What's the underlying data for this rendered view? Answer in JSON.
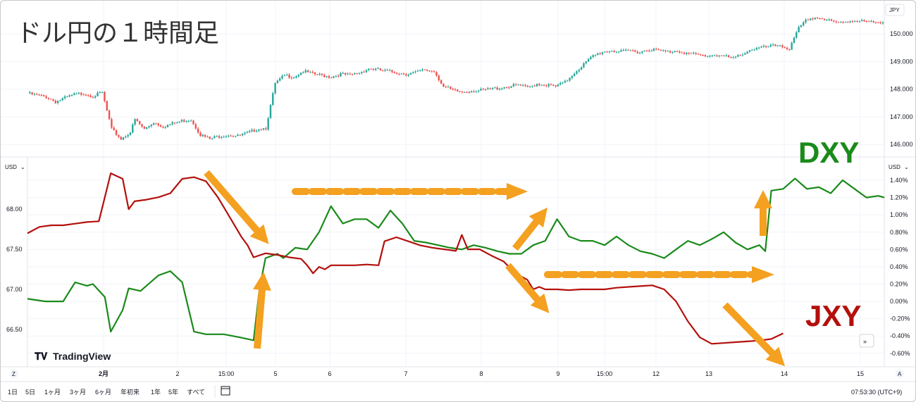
{
  "title": "ドル円の１時間足",
  "colors": {
    "up": "#26a69a",
    "down": "#ef5350",
    "dxy": "#1a8a1a",
    "jxy": "#b3100c",
    "arrow": "#f4a020",
    "grid": "#f0f3fa",
    "dxy_label": "#1a8a1a",
    "jxy_label": "#b3100c"
  },
  "top_panel": {
    "currency_button": "JPY",
    "y_labels": [
      "150.000",
      "149.000",
      "148.000",
      "147.000",
      "146.000"
    ],
    "y_values": [
      150,
      149,
      148,
      147,
      146
    ],
    "y_range": [
      145.75,
      151.0
    ]
  },
  "bottom_panel": {
    "left_currency": "USD",
    "right_currency": "USD",
    "left_labels": [
      "68.00",
      "67.50",
      "67.00",
      "66.50"
    ],
    "left_values": [
      68.0,
      67.5,
      67.0,
      66.5
    ],
    "left_range": [
      66.05,
      68.6
    ],
    "right_labels": [
      "1.40%",
      "1.20%",
      "1.00%",
      "0.80%",
      "0.60%",
      "0.40%",
      "0.20%",
      "0.00%",
      "-0.20%",
      "-0.40%",
      "-0.60%"
    ],
    "right_values": [
      1.4,
      1.2,
      1.0,
      0.8,
      0.6,
      0.4,
      0.2,
      0.0,
      -0.2,
      -0.4,
      -0.6
    ],
    "right_range": [
      -0.74,
      1.62
    ],
    "labels": {
      "dxy": "DXY",
      "jxy": "JXY"
    },
    "watermark": "TradingView",
    "scroll_button": "»"
  },
  "time_axis": {
    "left_button": "Z",
    "right_button": "A",
    "labels": [
      "2月",
      "2",
      "15:00",
      "5",
      "6",
      "7",
      "8",
      "9",
      "15:00",
      "12",
      "13",
      "14",
      "15"
    ]
  },
  "toolbar": {
    "ranges": [
      "1日",
      "5日",
      "1ヶ月",
      "3ヶ月",
      "6ヶ月",
      "年初来",
      "1年",
      "5年",
      "すべて"
    ],
    "clock": "07:53:30 (UTC+9)"
  },
  "chart_data": [
    {
      "type": "candlestick",
      "title": "ドル円の１時間足",
      "ylabel": "JPY",
      "ylim": [
        145.75,
        151.0
      ],
      "x_ticks": [
        "2月",
        "2",
        "15:00",
        "5",
        "6",
        "7",
        "8",
        "9",
        "15:00",
        "12",
        "13",
        "14",
        "15"
      ],
      "close_path": [
        [
          0,
          147.85
        ],
        [
          4,
          147.78
        ],
        [
          8,
          147.72
        ],
        [
          12,
          147.55
        ],
        [
          16,
          147.68
        ],
        [
          20,
          147.8
        ],
        [
          24,
          147.85
        ],
        [
          28,
          147.75
        ],
        [
          32,
          147.88
        ],
        [
          36,
          146.55
        ],
        [
          40,
          146.2
        ],
        [
          44,
          146.45
        ],
        [
          46,
          146.9
        ],
        [
          50,
          146.55
        ],
        [
          54,
          146.8
        ],
        [
          58,
          146.65
        ],
        [
          62,
          146.75
        ],
        [
          66,
          146.85
        ],
        [
          70,
          146.9
        ],
        [
          74,
          146.35
        ],
        [
          78,
          146.2
        ],
        [
          82,
          146.3
        ],
        [
          86,
          146.35
        ],
        [
          90,
          146.3
        ],
        [
          94,
          146.4
        ],
        [
          98,
          146.55
        ],
        [
          102,
          146.6
        ],
        [
          106,
          148.2
        ],
        [
          110,
          148.5
        ],
        [
          114,
          148.45
        ],
        [
          118,
          148.65
        ],
        [
          122,
          148.55
        ],
        [
          126,
          148.5
        ],
        [
          130,
          148.45
        ],
        [
          134,
          148.55
        ],
        [
          138,
          148.5
        ],
        [
          142,
          148.6
        ],
        [
          146,
          148.75
        ],
        [
          150,
          148.7
        ],
        [
          154,
          148.65
        ],
        [
          158,
          148.6
        ],
        [
          162,
          148.55
        ],
        [
          166,
          148.6
        ],
        [
          170,
          148.7
        ],
        [
          174,
          148.65
        ],
        [
          178,
          148.1
        ],
        [
          182,
          147.95
        ],
        [
          186,
          147.9
        ],
        [
          190,
          147.95
        ],
        [
          194,
          147.95
        ],
        [
          198,
          148.0
        ],
        [
          202,
          148.05
        ],
        [
          206,
          148.1
        ],
        [
          210,
          148.15
        ],
        [
          214,
          148.05
        ],
        [
          218,
          148.2
        ],
        [
          222,
          148.15
        ],
        [
          226,
          148.1
        ],
        [
          230,
          148.25
        ],
        [
          234,
          148.6
        ],
        [
          238,
          148.9
        ],
        [
          242,
          149.2
        ],
        [
          246,
          149.35
        ],
        [
          250,
          149.4
        ],
        [
          254,
          149.35
        ],
        [
          258,
          149.4
        ],
        [
          262,
          149.35
        ],
        [
          266,
          149.45
        ],
        [
          270,
          149.4
        ],
        [
          274,
          149.35
        ],
        [
          278,
          149.4
        ],
        [
          282,
          149.3
        ],
        [
          286,
          149.25
        ],
        [
          290,
          149.2
        ],
        [
          294,
          149.25
        ],
        [
          298,
          149.2
        ],
        [
          302,
          149.1
        ],
        [
          306,
          149.3
        ],
        [
          310,
          149.45
        ],
        [
          314,
          149.5
        ],
        [
          318,
          149.55
        ],
        [
          322,
          149.6
        ],
        [
          326,
          149.45
        ],
        [
          330,
          150.2
        ],
        [
          334,
          150.55
        ],
        [
          338,
          150.6
        ],
        [
          342,
          150.5
        ],
        [
          346,
          150.4
        ],
        [
          350,
          150.45
        ],
        [
          354,
          150.5
        ],
        [
          358,
          150.45
        ],
        [
          362,
          150.4
        ],
        [
          366,
          150.45
        ]
      ]
    },
    {
      "type": "line",
      "series": [
        {
          "name": "DXY",
          "axis": "right_percent",
          "values": [
            [
              0,
              0.03
            ],
            [
              3,
              0.0
            ],
            [
              6,
              0.0
            ],
            [
              8,
              0.22
            ],
            [
              10,
              0.18
            ],
            [
              11,
              0.2
            ],
            [
              13,
              0.05
            ],
            [
              14,
              -0.35
            ],
            [
              16,
              -0.1
            ],
            [
              17,
              0.15
            ],
            [
              19,
              0.12
            ],
            [
              22,
              0.3
            ],
            [
              24,
              0.35
            ],
            [
              26,
              0.22
            ],
            [
              28,
              -0.35
            ],
            [
              30,
              -0.38
            ],
            [
              33,
              -0.38
            ],
            [
              36,
              -0.42
            ],
            [
              38,
              -0.45
            ],
            [
              39,
              0.15
            ],
            [
              40,
              0.5
            ],
            [
              42,
              0.55
            ],
            [
              43,
              0.5
            ],
            [
              45,
              0.62
            ],
            [
              47,
              0.6
            ],
            [
              49,
              0.8
            ],
            [
              51,
              1.1
            ],
            [
              53,
              0.9
            ],
            [
              55,
              0.95
            ],
            [
              57,
              0.95
            ],
            [
              59,
              0.85
            ],
            [
              61,
              1.05
            ],
            [
              63,
              0.9
            ],
            [
              65,
              0.7
            ],
            [
              67,
              0.68
            ],
            [
              69,
              0.65
            ],
            [
              71,
              0.62
            ],
            [
              73,
              0.6
            ],
            [
              75,
              0.65
            ],
            [
              77,
              0.62
            ],
            [
              79,
              0.58
            ],
            [
              81,
              0.55
            ],
            [
              83,
              0.55
            ],
            [
              85,
              0.65
            ],
            [
              87,
              0.7
            ],
            [
              89,
              0.95
            ],
            [
              91,
              0.75
            ],
            [
              93,
              0.7
            ],
            [
              95,
              0.7
            ],
            [
              97,
              0.65
            ],
            [
              99,
              0.75
            ],
            [
              101,
              0.65
            ],
            [
              103,
              0.58
            ],
            [
              105,
              0.55
            ],
            [
              107,
              0.5
            ],
            [
              109,
              0.6
            ],
            [
              111,
              0.7
            ],
            [
              113,
              0.65
            ],
            [
              115,
              0.72
            ],
            [
              117,
              0.8
            ],
            [
              119,
              0.68
            ],
            [
              121,
              0.6
            ],
            [
              123,
              0.65
            ],
            [
              124,
              0.58
            ],
            [
              125,
              1.28
            ],
            [
              127,
              1.3
            ],
            [
              129,
              1.42
            ],
            [
              131,
              1.3
            ],
            [
              133,
              1.32
            ],
            [
              135,
              1.25
            ],
            [
              137,
              1.4
            ],
            [
              139,
              1.3
            ],
            [
              141,
              1.2
            ],
            [
              143,
              1.22
            ],
            [
              144,
              1.2
            ]
          ]
        },
        {
          "name": "JXY",
          "axis": "left",
          "values": [
            [
              0,
              67.7
            ],
            [
              2,
              67.78
            ],
            [
              4,
              67.8
            ],
            [
              6,
              67.8
            ],
            [
              8,
              67.82
            ],
            [
              10,
              67.84
            ],
            [
              12,
              67.85
            ],
            [
              14,
              68.45
            ],
            [
              16,
              68.38
            ],
            [
              17,
              68.0
            ],
            [
              18,
              68.1
            ],
            [
              20,
              68.12
            ],
            [
              22,
              68.15
            ],
            [
              24,
              68.2
            ],
            [
              26,
              68.38
            ],
            [
              28,
              68.4
            ],
            [
              30,
              68.35
            ],
            [
              32,
              68.15
            ],
            [
              34,
              67.9
            ],
            [
              36,
              67.65
            ],
            [
              37,
              67.55
            ],
            [
              38,
              67.4
            ],
            [
              40,
              67.45
            ],
            [
              42,
              67.43
            ],
            [
              44,
              67.4
            ],
            [
              46,
              67.38
            ],
            [
              47,
              67.3
            ],
            [
              48,
              67.2
            ],
            [
              49,
              67.28
            ],
            [
              50,
              67.25
            ],
            [
              51,
              67.3
            ],
            [
              53,
              67.3
            ],
            [
              55,
              67.3
            ],
            [
              57,
              67.31
            ],
            [
              59,
              67.3
            ],
            [
              60,
              67.6
            ],
            [
              62,
              67.65
            ],
            [
              64,
              67.6
            ],
            [
              66,
              67.55
            ],
            [
              68,
              67.52
            ],
            [
              70,
              67.5
            ],
            [
              72,
              67.48
            ],
            [
              73,
              67.68
            ],
            [
              74,
              67.5
            ],
            [
              76,
              67.5
            ],
            [
              78,
              67.42
            ],
            [
              80,
              67.35
            ],
            [
              82,
              67.2
            ],
            [
              84,
              67.12
            ],
            [
              85,
              67.0
            ],
            [
              86,
              67.03
            ],
            [
              87,
              67.0
            ],
            [
              89,
              67.0
            ],
            [
              91,
              66.99
            ],
            [
              93,
              67.0
            ],
            [
              95,
              67.0
            ],
            [
              97,
              67.0
            ],
            [
              99,
              67.02
            ],
            [
              101,
              67.03
            ],
            [
              103,
              67.04
            ],
            [
              105,
              67.05
            ],
            [
              107,
              67.0
            ],
            [
              109,
              66.85
            ],
            [
              111,
              66.6
            ],
            [
              113,
              66.4
            ],
            [
              115,
              66.32
            ],
            [
              117,
              66.33
            ],
            [
              119,
              66.34
            ],
            [
              121,
              66.35
            ],
            [
              123,
              66.36
            ],
            [
              125,
              66.38
            ],
            [
              127,
              66.45
            ]
          ]
        }
      ]
    }
  ]
}
